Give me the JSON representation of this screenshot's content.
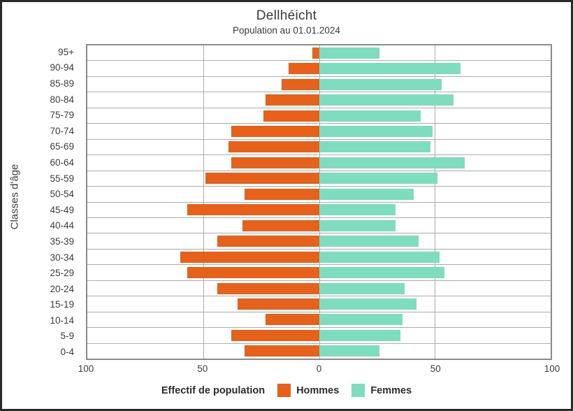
{
  "figure": {
    "title": "Dellhéicht",
    "subtitle": "Population au 01.01.2024",
    "ylabel": "Classes d'âge",
    "xlabel": "Effectif de population"
  },
  "chart_data": {
    "type": "bar",
    "variant": "population-pyramid",
    "title": "Dellhéicht",
    "subtitle": "Population au 01.01.2024",
    "ylabel": "Classes d'âge",
    "xlabel": "Effectif de population",
    "categories": [
      "95+",
      "90-94",
      "85-89",
      "80-84",
      "75-79",
      "70-74",
      "65-69",
      "60-64",
      "55-59",
      "50-54",
      "45-49",
      "40-44",
      "35-39",
      "30-34",
      "25-29",
      "20-24",
      "15-19",
      "10-14",
      "5-9",
      "0-4"
    ],
    "series": [
      {
        "name": "Hommes",
        "side": "left",
        "color": "#E8611B",
        "values": [
          3,
          13,
          16,
          23,
          24,
          38,
          39,
          38,
          49,
          32,
          57,
          33,
          44,
          60,
          57,
          44,
          35,
          23,
          38,
          32
        ]
      },
      {
        "name": "Femmes",
        "side": "right",
        "color": "#7EDCBF",
        "values": [
          26,
          61,
          53,
          58,
          44,
          49,
          48,
          63,
          51,
          41,
          33,
          33,
          43,
          52,
          54,
          37,
          42,
          36,
          35,
          26
        ]
      }
    ],
    "x_ticks": [
      "100",
      "50",
      "0",
      "50",
      "100"
    ],
    "x_tick_positions_percent": [
      0,
      25,
      50,
      75,
      100
    ],
    "xlim_each_side": [
      0,
      100
    ],
    "grid": true,
    "legend_position": "bottom",
    "colors": {
      "hommes": "#E8611B",
      "femmes": "#7EDCBF",
      "grid": "#acacac",
      "plot_border": "#8a8a8a",
      "text": "#3a3a3a"
    }
  }
}
